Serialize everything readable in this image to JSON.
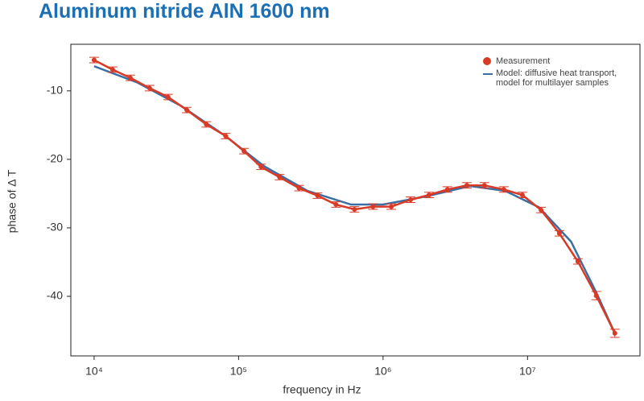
{
  "chart_data": {
    "type": "line",
    "title": "Aluminum nitride AlN 1600 nm",
    "xlabel": "frequency in Hz",
    "ylabel": "phase of Δ T",
    "xscale": "log",
    "xlim": [
      6900,
      60000000
    ],
    "ylim": [
      -48.7,
      -3.2
    ],
    "xticks": [
      {
        "value": 10000,
        "label": "10⁴"
      },
      {
        "value": 100000,
        "label": "10⁵"
      },
      {
        "value": 1000000,
        "label": "10⁶"
      },
      {
        "value": 10000000,
        "label": "10⁷"
      }
    ],
    "yticks": [
      -10,
      -20,
      -30,
      -40
    ],
    "legend": "top-right",
    "series": [
      {
        "name": "Measurement",
        "color": "#d93a26",
        "marker": "circle",
        "x": [
          10000,
          13430,
          17800,
          24200,
          32500,
          43800,
          59800,
          81400,
          109000,
          143000,
          192000,
          262000,
          352000,
          472000,
          634000,
          852000,
          1140000,
          1550000,
          2080000,
          2790000,
          3800000,
          5030000,
          6850000,
          9200000,
          12400000,
          16600000,
          22300000,
          29900000,
          40200000
        ],
        "values": [
          -5.5,
          -6.9,
          -8.1,
          -9.6,
          -10.9,
          -12.8,
          -14.9,
          -16.6,
          -18.8,
          -21.1,
          -22.6,
          -24.2,
          -25.3,
          -26.6,
          -27.3,
          -26.9,
          -26.9,
          -25.9,
          -25.2,
          -24.4,
          -23.8,
          -23.8,
          -24.4,
          -25.2,
          -27.4,
          -30.8,
          -34.9,
          -39.9,
          -45.4
        ],
        "errors": [
          0.4,
          0.4,
          0.4,
          0.4,
          0.4,
          0.4,
          0.4,
          0.4,
          0.4,
          0.4,
          0.4,
          0.4,
          0.4,
          0.4,
          0.4,
          0.4,
          0.4,
          0.4,
          0.4,
          0.4,
          0.4,
          0.4,
          0.4,
          0.4,
          0.4,
          0.4,
          0.4,
          0.6,
          0.6
        ]
      },
      {
        "name": "Model: diffusive heat transport, model for multilayer samples",
        "color": "#3a6ea5",
        "x": [
          10000,
          20000,
          40000,
          80000,
          150000,
          300000,
          600000,
          1000000,
          2000000,
          4000000,
          7000000,
          12000000,
          20000000,
          30000000,
          40000000
        ],
        "values": [
          -6.4,
          -8.8,
          -12.2,
          -16.5,
          -21.0,
          -24.6,
          -26.6,
          -26.6,
          -25.4,
          -23.9,
          -24.6,
          -27.0,
          -32.0,
          -39.5,
          -45.3
        ]
      }
    ]
  }
}
